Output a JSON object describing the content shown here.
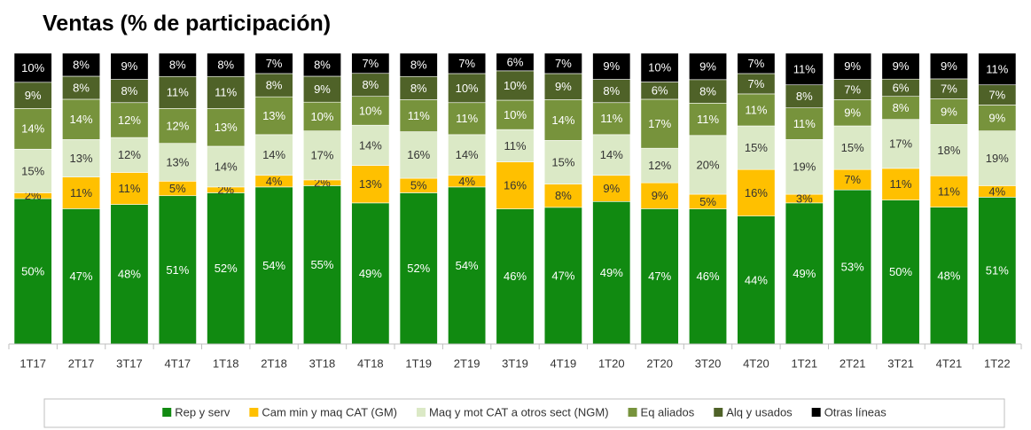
{
  "chart_data": {
    "type": "stacked_bar",
    "title": "Ventas (% de participación)",
    "categories": [
      "1T17",
      "2T17",
      "3T17",
      "4T17",
      "1T18",
      "2T18",
      "3T18",
      "4T18",
      "1T19",
      "2T19",
      "3T19",
      "4T19",
      "1T20",
      "2T20",
      "3T20",
      "4T20",
      "1T21",
      "2T21",
      "3T21",
      "4T21",
      "1T22"
    ],
    "series": [
      {
        "name": "Rep y serv",
        "color": "#118a11",
        "values": [
          50,
          47,
          48,
          51,
          52,
          54,
          55,
          49,
          52,
          54,
          46,
          47,
          49,
          47,
          46,
          44,
          49,
          53,
          50,
          48,
          51
        ],
        "value_labels": [
          "50%",
          "47%",
          "48%",
          "51%",
          "52%",
          "54%",
          "55%",
          "49%",
          "52%",
          "54%",
          "46%",
          "47%",
          "49%",
          "47%",
          "46%",
          "44%",
          "49%",
          "53%",
          "50%",
          "48%",
          "51%"
        ]
      },
      {
        "name": "Cam min y maq CAT (GM)",
        "color": "#ffc000",
        "values": [
          2,
          11,
          11,
          5,
          2,
          4,
          2,
          13,
          5,
          4,
          16,
          8,
          9,
          9,
          5,
          16,
          3,
          7,
          11,
          11,
          4
        ],
        "value_labels": [
          "2%",
          "11%",
          "11%",
          "5%",
          "2%",
          "4%",
          "2%",
          "13%",
          "5%",
          "4%",
          "16%",
          "8%",
          "9%",
          "9%",
          "5%",
          "16%",
          "3%",
          "7%",
          "11%",
          "11%",
          "4%"
        ]
      },
      {
        "name": "Maq y mot CAT a otros sect (NGM)",
        "color": "#dbe9c6",
        "values": [
          15,
          13,
          12,
          13,
          14,
          14,
          17,
          14,
          16,
          14,
          11,
          15,
          14,
          12,
          20,
          15,
          19,
          15,
          17,
          18,
          19
        ],
        "value_labels": [
          "15%",
          "13%",
          "12%",
          "13%",
          "14%",
          "14%",
          "17%",
          "14%",
          "16%",
          "14%",
          "11%",
          "15%",
          "14%",
          "12%",
          "20%",
          "15%",
          "19%",
          "15%",
          "17%",
          "18%",
          "19%"
        ]
      },
      {
        "name": "Eq aliados",
        "color": "#77933c",
        "values": [
          14,
          14,
          12,
          12,
          13,
          13,
          10,
          10,
          11,
          11,
          10,
          14,
          11,
          17,
          11,
          11,
          11,
          9,
          8,
          9,
          9
        ],
        "value_labels": [
          "14%",
          "14%",
          "12%",
          "12%",
          "13%",
          "13%",
          "10%",
          "10%",
          "11%",
          "11%",
          "10%",
          "14%",
          "11%",
          "17%",
          "11%",
          "11%",
          "11%",
          "9%",
          "8%",
          "9%",
          "9%"
        ]
      },
      {
        "name": "Alq y usados",
        "color": "#4f6228",
        "values": [
          9,
          8,
          8,
          11,
          11,
          8,
          9,
          8,
          8,
          10,
          10,
          9,
          8,
          6,
          8,
          7,
          8,
          7,
          6,
          7,
          7
        ],
        "value_labels": [
          "9%",
          "8%",
          "8%",
          "11%",
          "11%",
          "8%",
          "9%",
          "8%",
          "8%",
          "10%",
          "10%",
          "9%",
          "8%",
          "6%",
          "8%",
          "7%",
          "8%",
          "7%",
          "6%",
          "7%",
          "7%"
        ]
      },
      {
        "name": "Otras líneas",
        "color": "#000000",
        "values": [
          10,
          8,
          9,
          8,
          8,
          7,
          8,
          7,
          8,
          7,
          6,
          7,
          9,
          10,
          9,
          7,
          11,
          9,
          9,
          9,
          11
        ],
        "value_labels": [
          "10%",
          "8%",
          "9%",
          "8%",
          "8%",
          "7%",
          "8%",
          "7%",
          "8%",
          "7%",
          "6%",
          "7%",
          "9%",
          "10%",
          "9%",
          "7%",
          "11%",
          "9%",
          "9%",
          "9%",
          "11%"
        ]
      }
    ]
  }
}
